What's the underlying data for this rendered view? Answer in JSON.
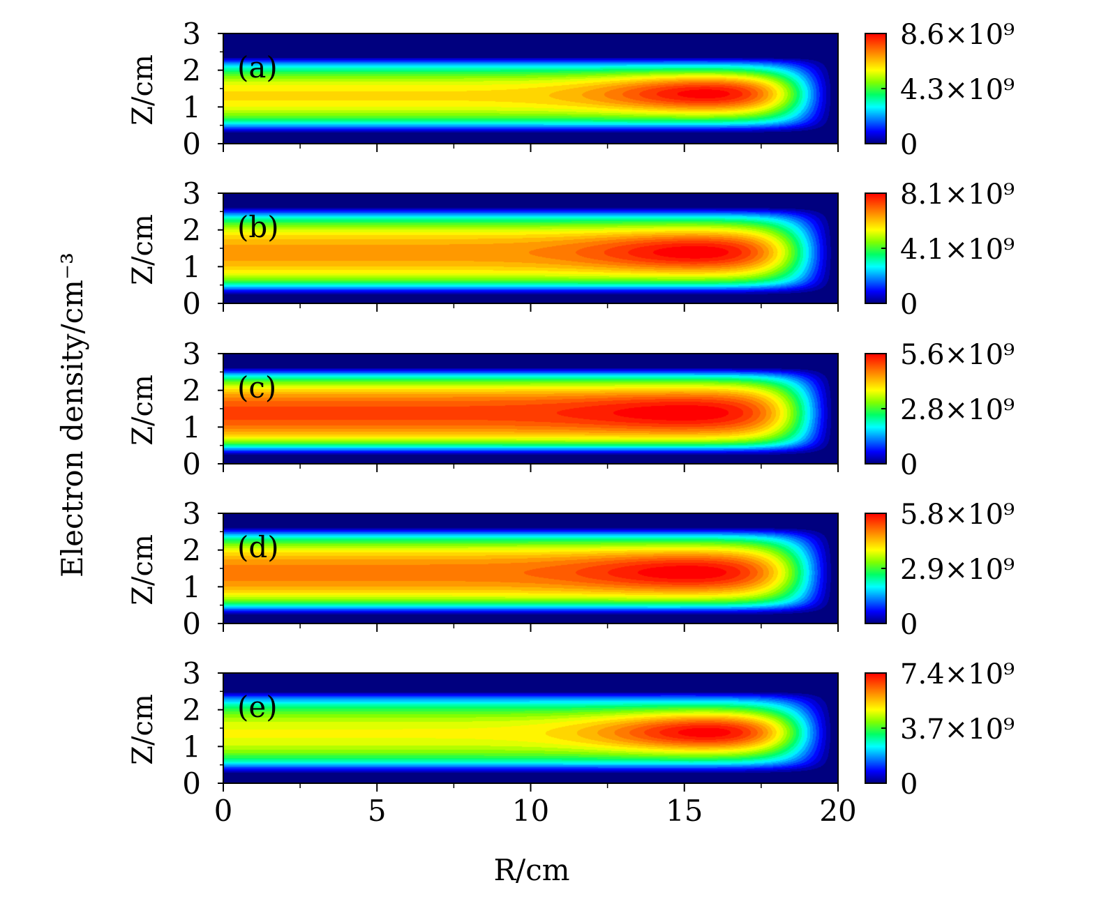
{
  "figure": {
    "shared_ylabel": "Electron density/cm⁻³",
    "xlabel": "R/cm",
    "zlabel": "Z/cm"
  },
  "colormap": [
    "#00007f",
    "#0000ff",
    "#007fff",
    "#00ffff",
    "#00ff66",
    "#7fff00",
    "#ffff00",
    "#ffaa00",
    "#ff5500",
    "#ff0000"
  ],
  "chart_data": [
    {
      "type": "heatmap",
      "panel_label": "(a)",
      "xlabel": "R/cm",
      "ylabel": "Z/cm",
      "xlim": [
        0,
        20
      ],
      "ylim": [
        0,
        3
      ],
      "x_ticks": [
        "0",
        "5",
        "10",
        "15",
        "20"
      ],
      "y_ticks": [
        "0",
        "1",
        "2",
        "3"
      ],
      "colorbar": {
        "min": 0,
        "max": 8600000000.0,
        "tick_labels": [
          "0",
          "4.3×10⁹",
          "8.6×10⁹"
        ]
      },
      "peak": {
        "R": 16.0,
        "Z": 1.4,
        "value": 8600000000.0
      },
      "profile": {
        "near_axis_level": 0.7,
        "z_center": 1.3,
        "z_halfwidth": 1.05
      }
    },
    {
      "type": "heatmap",
      "panel_label": "(b)",
      "xlabel": "R/cm",
      "ylabel": "Z/cm",
      "xlim": [
        0,
        20
      ],
      "ylim": [
        0,
        3
      ],
      "x_ticks": [
        "0",
        "5",
        "10",
        "15",
        "20"
      ],
      "y_ticks": [
        "0",
        "1",
        "2",
        "3"
      ],
      "colorbar": {
        "min": 0,
        "max": 8100000000.0,
        "tick_labels": [
          "0",
          "4.1×10⁹",
          "8.1×10⁹"
        ]
      },
      "peak": {
        "R": 15.6,
        "Z": 1.4,
        "value": 8100000000.0
      },
      "profile": {
        "near_axis_level": 0.79,
        "z_center": 1.38,
        "z_halfwidth": 1.25
      }
    },
    {
      "type": "heatmap",
      "panel_label": "(c)",
      "xlabel": "R/cm",
      "ylabel": "Z/cm",
      "xlim": [
        0,
        20
      ],
      "ylim": [
        0,
        3
      ],
      "x_ticks": [
        "0",
        "5",
        "10",
        "15",
        "20"
      ],
      "y_ticks": [
        "0",
        "1",
        "2",
        "3"
      ],
      "colorbar": {
        "min": 0,
        "max": 5600000000.0,
        "tick_labels": [
          "0",
          "2.8×10⁹",
          "5.6×10⁹"
        ]
      },
      "peak": {
        "R": 15.2,
        "Z": 1.4,
        "value": 5600000000.0
      },
      "profile": {
        "near_axis_level": 0.9,
        "z_center": 1.38,
        "z_halfwidth": 1.25
      }
    },
    {
      "type": "heatmap",
      "panel_label": "(d)",
      "xlabel": "R/cm",
      "ylabel": "Z/cm",
      "xlim": [
        0,
        20
      ],
      "ylim": [
        0,
        3
      ],
      "x_ticks": [
        "0",
        "5",
        "10",
        "15",
        "20"
      ],
      "y_ticks": [
        "0",
        "1",
        "2",
        "3"
      ],
      "colorbar": {
        "min": 0,
        "max": 5800000000.0,
        "tick_labels": [
          "0",
          "2.9×10⁹",
          "5.8×10⁹"
        ]
      },
      "peak": {
        "R": 15.3,
        "Z": 1.4,
        "value": 5800000000.0
      },
      "profile": {
        "near_axis_level": 0.83,
        "z_center": 1.38,
        "z_halfwidth": 1.25
      }
    },
    {
      "type": "heatmap",
      "panel_label": "(e)",
      "xlabel": "R/cm",
      "ylabel": "Z/cm",
      "xlim": [
        0,
        20
      ],
      "ylim": [
        0,
        3
      ],
      "x_ticks": [
        "0",
        "5",
        "10",
        "15",
        "20"
      ],
      "y_ticks": [
        "0",
        "1",
        "2",
        "3"
      ],
      "colorbar": {
        "min": 0,
        "max": 7400000000.0,
        "tick_labels": [
          "0",
          "3.7×10⁹",
          "7.4×10⁹"
        ]
      },
      "peak": {
        "R": 16.0,
        "Z": 1.4,
        "value": 7400000000.0
      },
      "profile": {
        "near_axis_level": 0.66,
        "z_center": 1.35,
        "z_halfwidth": 1.15
      }
    }
  ]
}
